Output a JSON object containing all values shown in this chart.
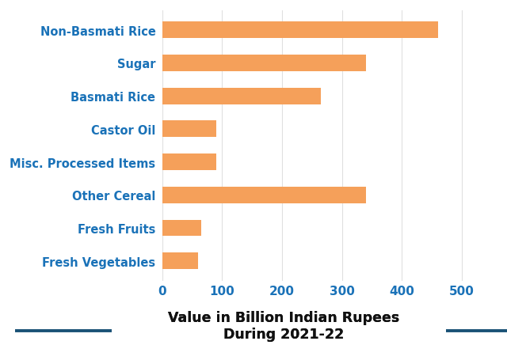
{
  "categories": [
    "Fresh Vegetables",
    "Fresh Fruits",
    "Other Cereal",
    "Misc. Processed Items",
    "Castor Oil",
    "Basmati Rice",
    "Sugar",
    "Non-Basmati Rice"
  ],
  "values": [
    60,
    65,
    340,
    90,
    90,
    265,
    340,
    460
  ],
  "bar_color": "#F5A05A",
  "label_color": "#1A72B8",
  "tick_color": "#1A72B8",
  "title_color": "#111111",
  "title_fontsize": 12.5,
  "label_fontsize": 10.5,
  "tick_fontsize": 11,
  "xlim": [
    0,
    550
  ],
  "xticks": [
    0,
    100,
    200,
    300,
    400,
    500
  ],
  "background_color": "#ffffff",
  "bar_height": 0.5,
  "line_color": "#1A5276",
  "grid_color": "#e0e0e0"
}
